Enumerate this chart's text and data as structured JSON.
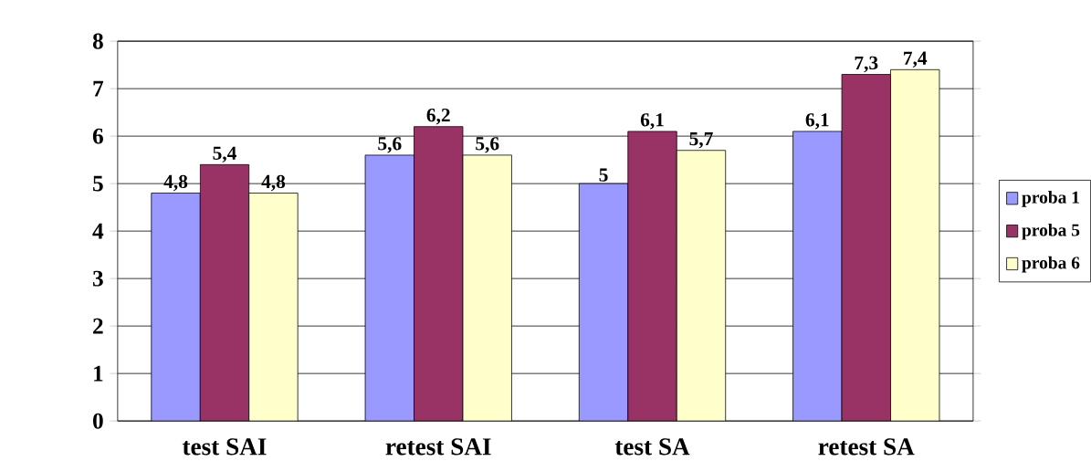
{
  "chart_data": {
    "type": "bar",
    "categories": [
      "test SAI",
      "retest SAI",
      "test SA",
      "retest SA"
    ],
    "series": [
      {
        "name": "proba 1",
        "color": "#9999ff",
        "values": [
          4.8,
          5.6,
          5,
          6.1
        ],
        "value_labels": [
          "4,8",
          "5,6",
          "5",
          "6,1"
        ]
      },
      {
        "name": "proba 5",
        "color": "#993366",
        "values": [
          5.4,
          6.2,
          6.1,
          7.3
        ],
        "value_labels": [
          "5,4",
          "6,2",
          "6,1",
          "7,3"
        ]
      },
      {
        "name": "proba 6",
        "color": "#ffffcc",
        "values": [
          4.8,
          5.6,
          5.7,
          7.4
        ],
        "value_labels": [
          "4,8",
          "5,6",
          "5,7",
          "7,4"
        ]
      }
    ],
    "ylim": [
      0,
      8
    ],
    "yticks": [
      0,
      1,
      2,
      3,
      4,
      5,
      6,
      7,
      8
    ],
    "grid": "y",
    "legend": "right"
  }
}
